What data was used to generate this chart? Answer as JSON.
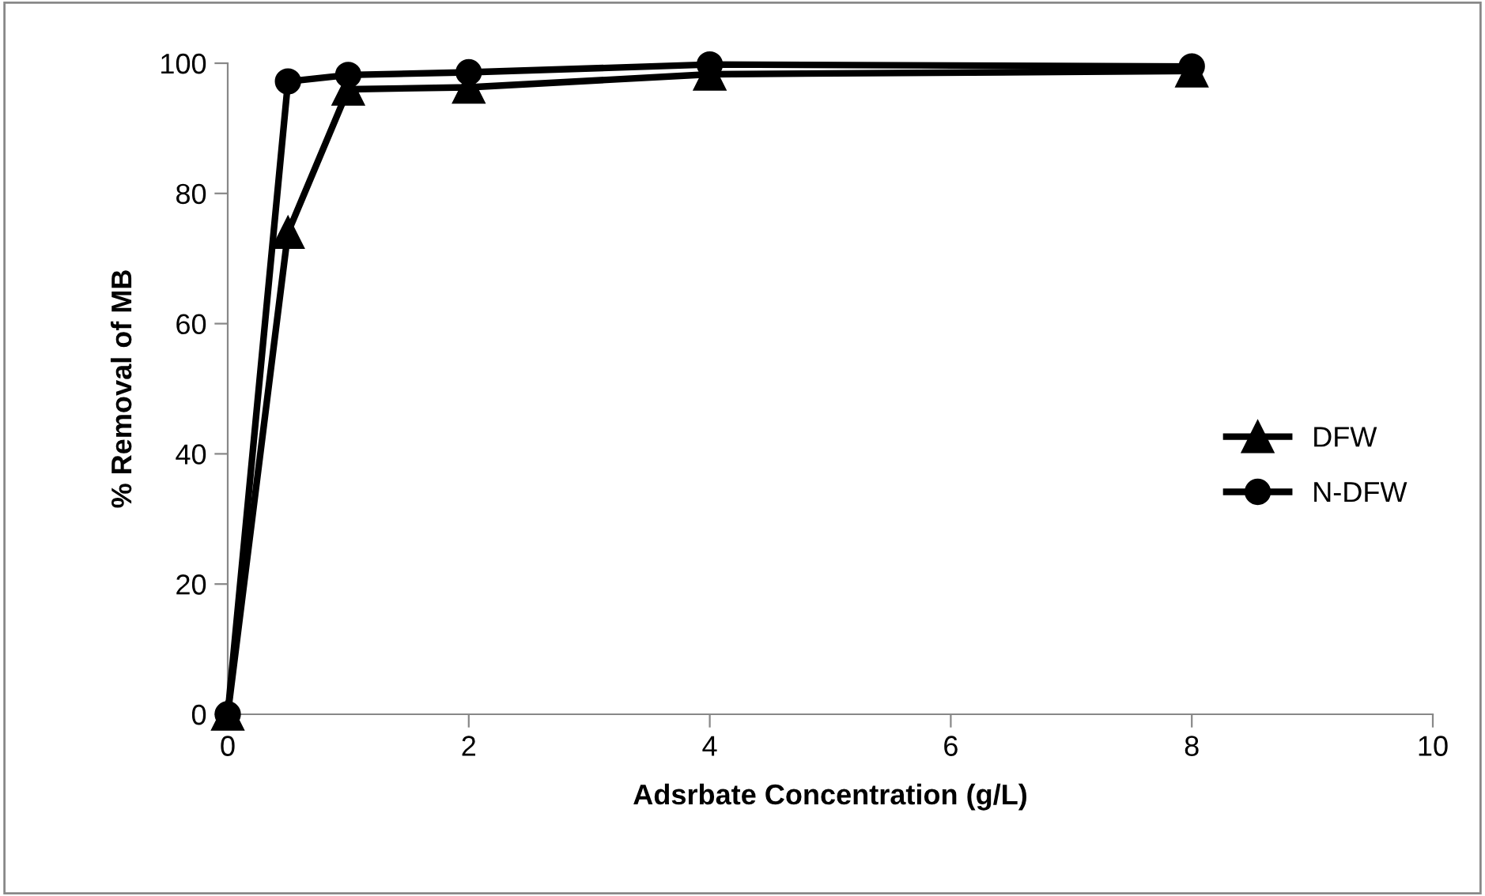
{
  "chart_data": {
    "type": "line",
    "xlabel": "Adsrbate Concentration (g/L)",
    "ylabel": "% Removal of MB",
    "xlim": [
      0,
      10
    ],
    "xticks": [
      0,
      2,
      4,
      6,
      8,
      10
    ],
    "ylim": [
      0,
      100
    ],
    "yticks": [
      0,
      20,
      40,
      60,
      80,
      100
    ],
    "grid": false,
    "legend": "right",
    "line_style": "solid",
    "series": [
      {
        "name": "DFW",
        "color": "#000000",
        "marker": "triangle",
        "x": [
          0,
          0.5,
          1,
          2,
          4,
          8
        ],
        "values": [
          0,
          74,
          96,
          96.3,
          98.3,
          98.8
        ]
      },
      {
        "name": "N-DFW",
        "color": "#000000",
        "marker": "circle",
        "x": [
          0,
          0.5,
          1,
          2,
          4,
          8
        ],
        "values": [
          0,
          97.2,
          98.2,
          98.6,
          99.8,
          99.5
        ]
      }
    ]
  }
}
